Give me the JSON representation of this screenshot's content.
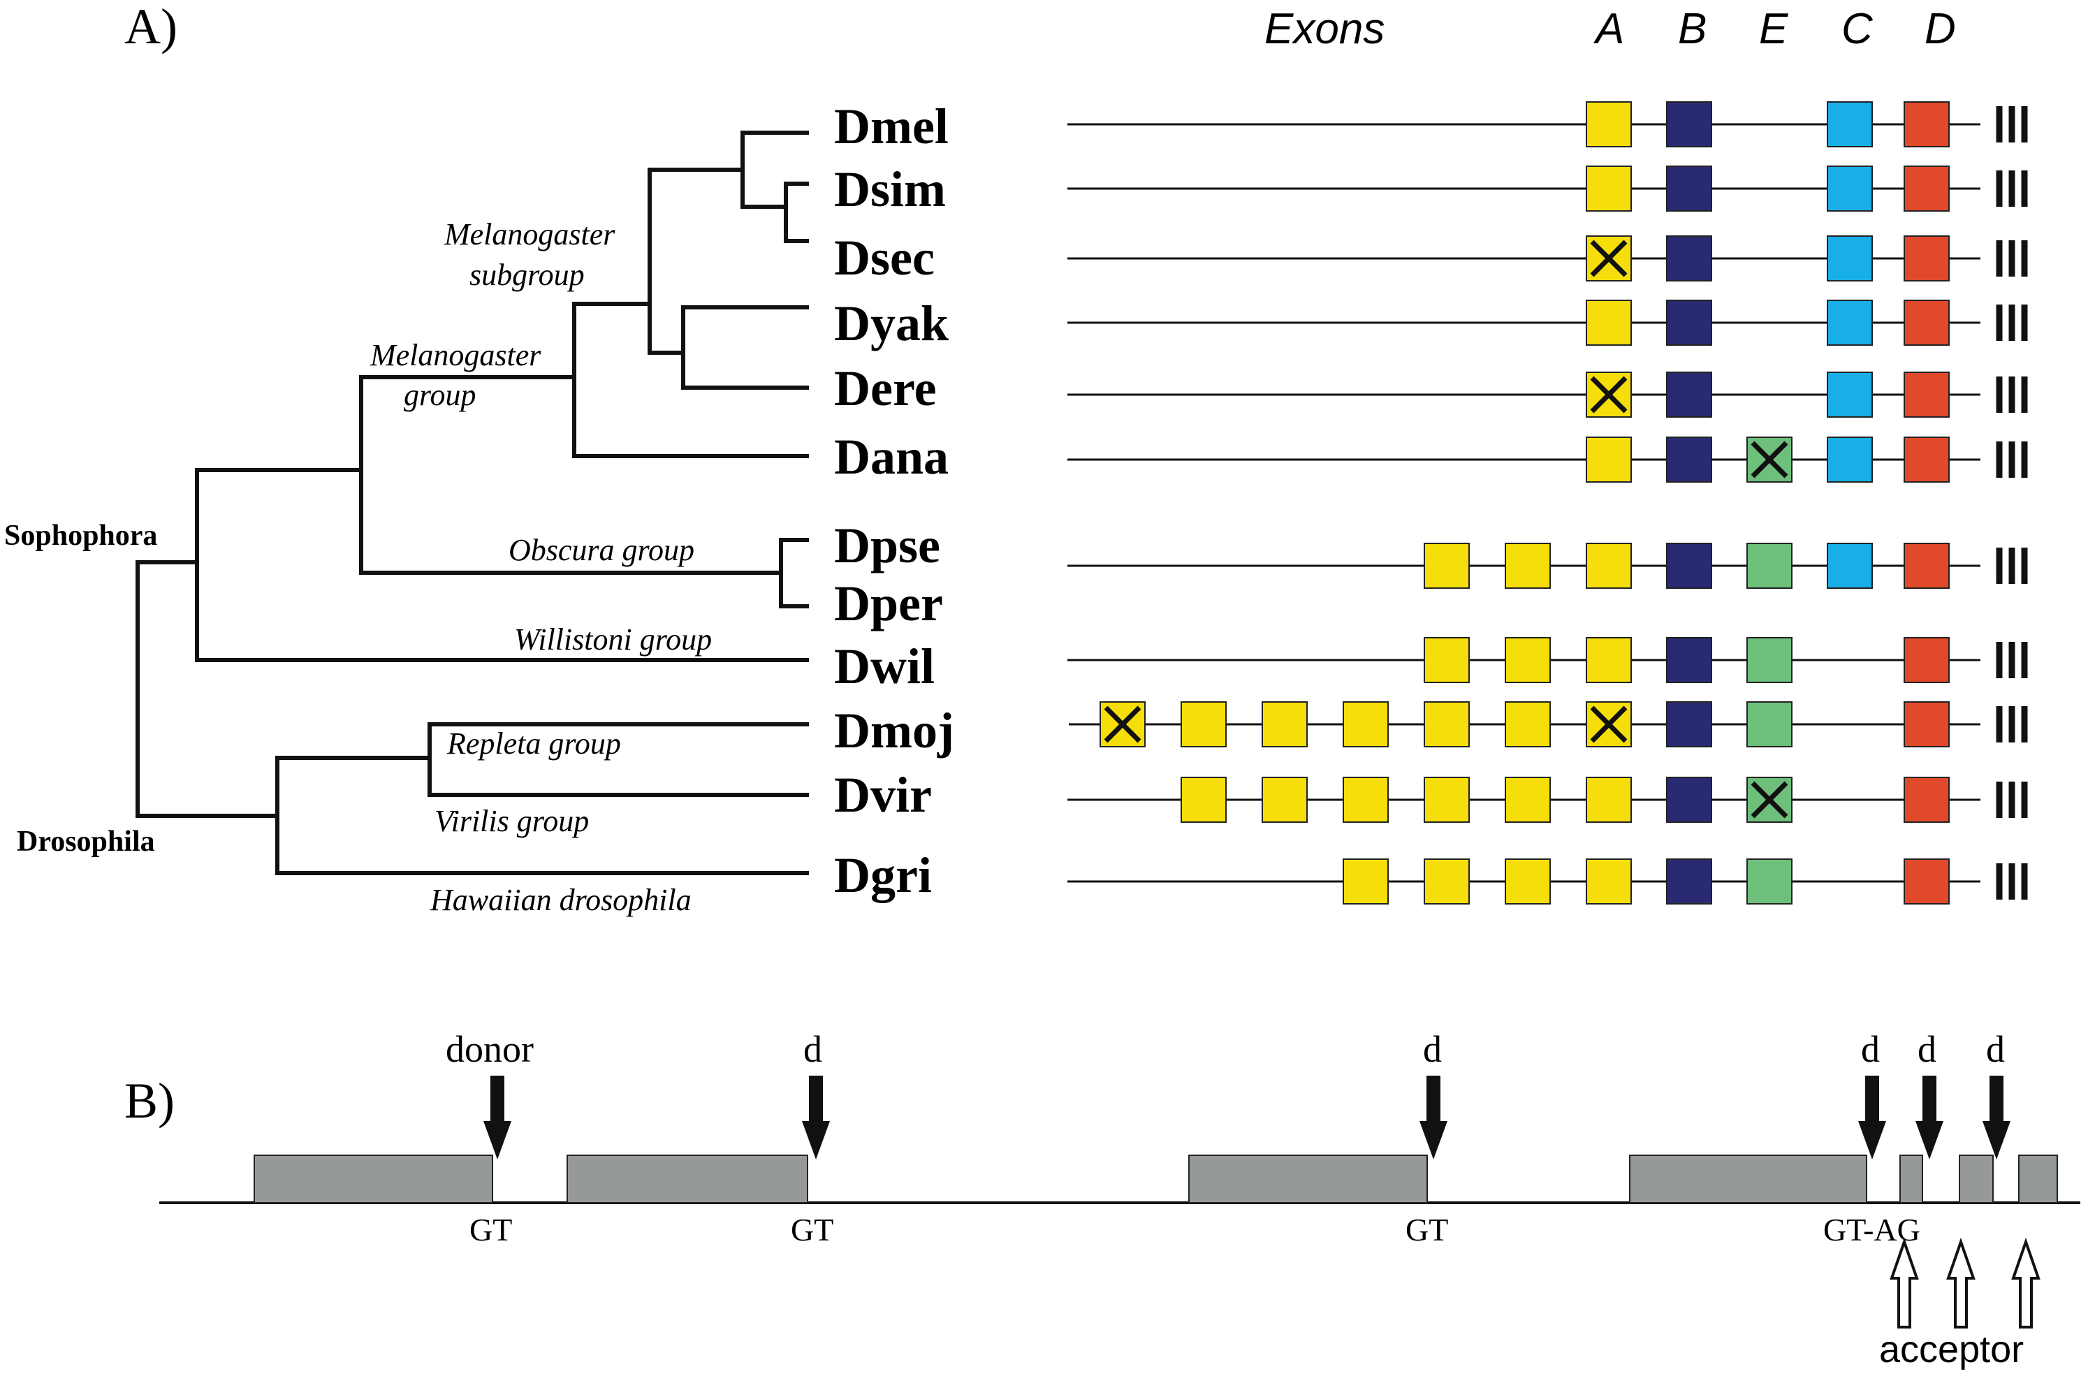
{
  "panel_a": {
    "label": "A)",
    "exons_title": "Exons",
    "exon_columns": [
      "A",
      "B",
      "E",
      "C",
      "D"
    ],
    "clades": {
      "sophophora": "Sophophora",
      "drosophila": "Drosophila"
    },
    "groups": {
      "melanogaster_subgroup_line1": "Melanogaster",
      "melanogaster_subgroup_line2": "subgroup",
      "melanogaster_group_line1": "Melanogaster",
      "melanogaster_group_line2": "group",
      "obscura": "Obscura group",
      "willistoni": "Willistoni group",
      "repleta": "Repleta group",
      "virilis": "Virilis group",
      "hawaiian": "Hawaiian drosophila"
    },
    "species": [
      {
        "name": "Dmel",
        "extra_yellow": 0,
        "crossed_extra": [],
        "A": "present",
        "B": "present",
        "E": "absent",
        "C": "present",
        "D": "present"
      },
      {
        "name": "Dsim",
        "extra_yellow": 0,
        "crossed_extra": [],
        "A": "present",
        "B": "present",
        "E": "absent",
        "C": "present",
        "D": "present"
      },
      {
        "name": "Dsec",
        "extra_yellow": 0,
        "crossed_extra": [],
        "A": "crossed",
        "B": "present",
        "E": "absent",
        "C": "present",
        "D": "present"
      },
      {
        "name": "Dyak",
        "extra_yellow": 0,
        "crossed_extra": [],
        "A": "present",
        "B": "present",
        "E": "absent",
        "C": "present",
        "D": "present"
      },
      {
        "name": "Dere",
        "extra_yellow": 0,
        "crossed_extra": [],
        "A": "crossed",
        "B": "present",
        "E": "absent",
        "C": "present",
        "D": "present"
      },
      {
        "name": "Dana",
        "extra_yellow": 0,
        "crossed_extra": [],
        "A": "present",
        "B": "present",
        "E": "crossed",
        "C": "present",
        "D": "present"
      },
      {
        "name": "Dpse / Dper",
        "extra_yellow": 2,
        "crossed_extra": [],
        "A": "present",
        "B": "present",
        "E": "present",
        "C": "present",
        "D": "present"
      },
      {
        "name": "Dwil",
        "extra_yellow": 2,
        "crossed_extra": [],
        "A": "present",
        "B": "present",
        "E": "present",
        "C": "absent",
        "D": "present"
      },
      {
        "name": "Dmoj",
        "extra_yellow": 6,
        "crossed_extra": [
          6
        ],
        "A": "crossed",
        "B": "present",
        "E": "present",
        "C": "absent",
        "D": "present"
      },
      {
        "name": "Dvir",
        "extra_yellow": 5,
        "crossed_extra": [],
        "A": "present",
        "B": "present",
        "E": "crossed",
        "C": "absent",
        "D": "present"
      },
      {
        "name": "Dgri",
        "extra_yellow": 3,
        "crossed_extra": [],
        "A": "present",
        "B": "present",
        "E": "present",
        "C": "absent",
        "D": "present"
      }
    ],
    "species_labels": [
      "Dmel",
      "Dsim",
      "Dsec",
      "Dyak",
      "Dere",
      "Dana",
      "Dpse",
      "Dper",
      "Dwil",
      "Dmoj",
      "Dvir",
      "Dgri"
    ],
    "colors": {
      "A": "#f5de0a",
      "B": "#2a2a72",
      "E": "#6dbf7b",
      "C": "#19aee6",
      "D": "#e0492a"
    }
  },
  "panel_b": {
    "label": "B)",
    "donor_labels": [
      "donor",
      "d",
      "d",
      "d",
      "d",
      "d"
    ],
    "site_labels": [
      "GT",
      "GT",
      "GT",
      "GT-AG"
    ],
    "acceptor_label": "acceptor",
    "exon_color": "#959a99"
  }
}
